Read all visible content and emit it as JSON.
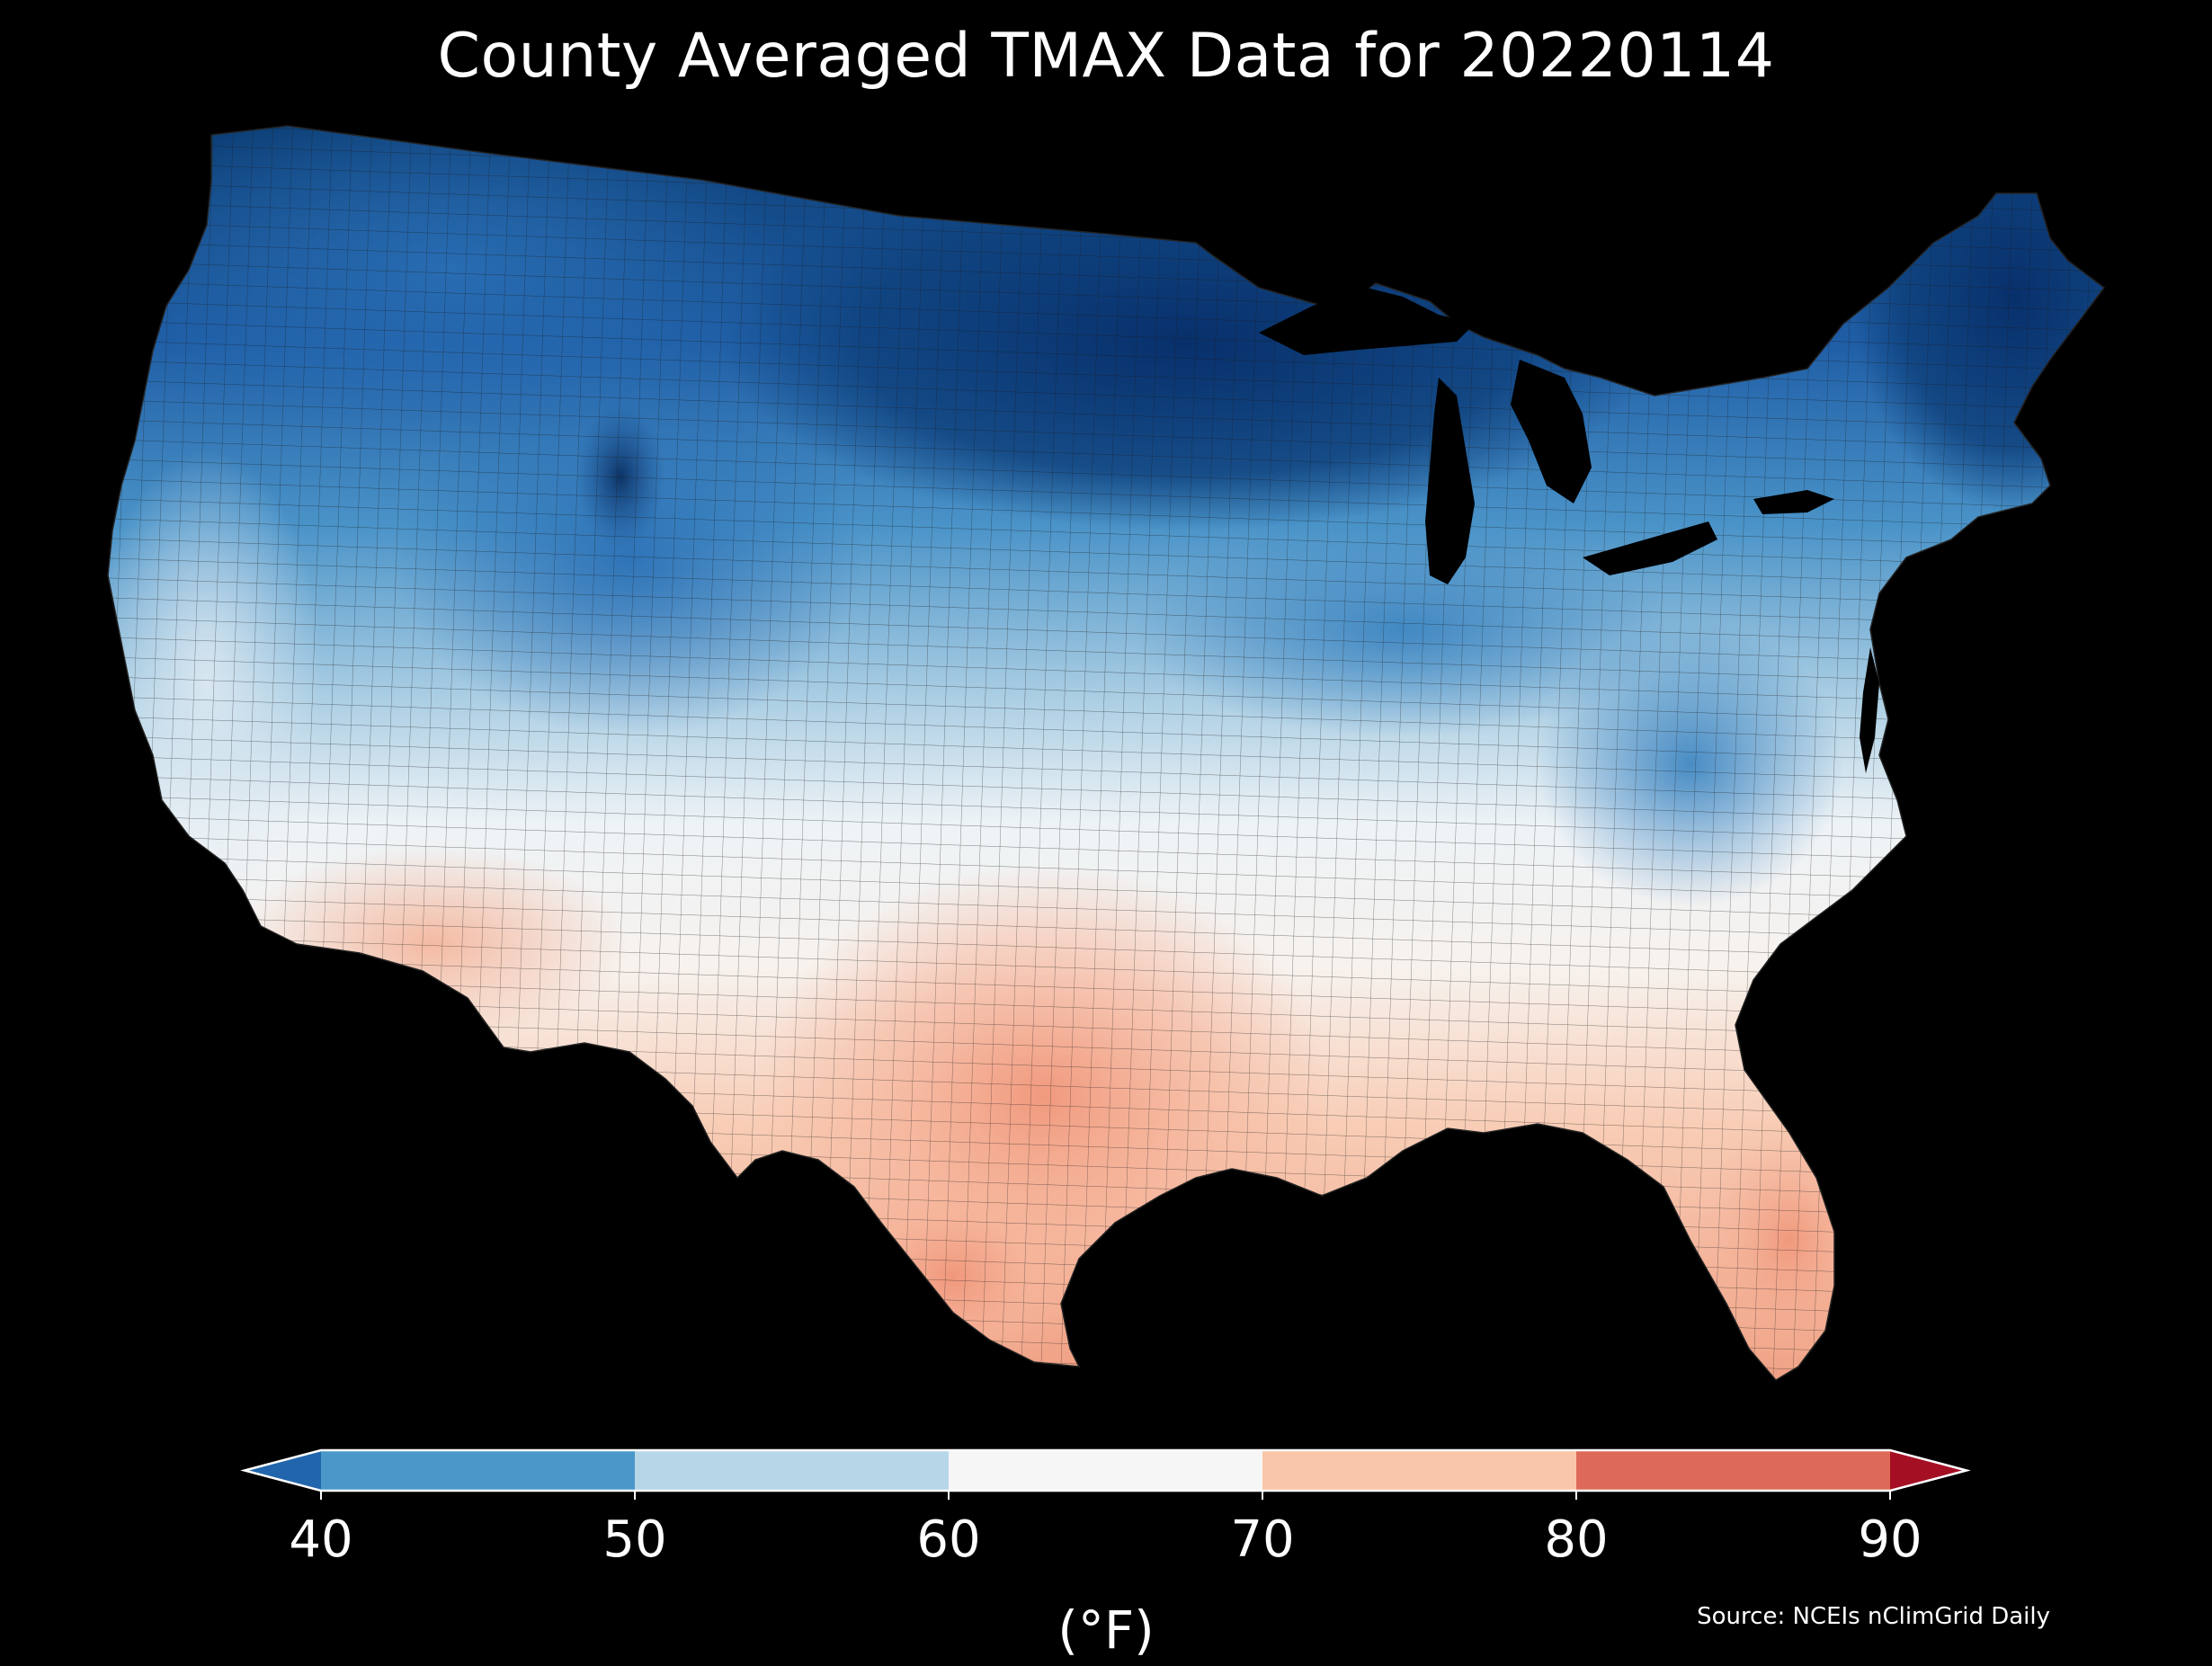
{
  "title": "County Averaged TMAX Data for 20220114",
  "colorbar": {
    "unit_label": "(°F)",
    "ticks": [
      "40",
      "50",
      "60",
      "70",
      "80",
      "90"
    ],
    "tick_values": [
      40,
      50,
      60,
      70,
      80,
      90
    ],
    "bins": [
      {
        "min": 40,
        "max": 50,
        "color": "#4a98c9"
      },
      {
        "min": 50,
        "max": 60,
        "color": "#b6d7e8"
      },
      {
        "min": 60,
        "max": 70,
        "color": "#f6f6f6"
      },
      {
        "min": 70,
        "max": 80,
        "color": "#fac6a9"
      },
      {
        "min": 80,
        "max": 90,
        "color": "#dd6a58"
      }
    ],
    "extend_low_color": "#2166ac",
    "extend_high_color": "#a50f24",
    "extend": "both"
  },
  "source": "Source: NCEIs nClimGrid Daily",
  "map": {
    "region": "Contiguous United States",
    "boundaries": "counties",
    "colormap": "RdBu_r",
    "value_range": [
      40,
      90
    ],
    "lakes_color": "#000000",
    "ocean_color": "#000000"
  }
}
